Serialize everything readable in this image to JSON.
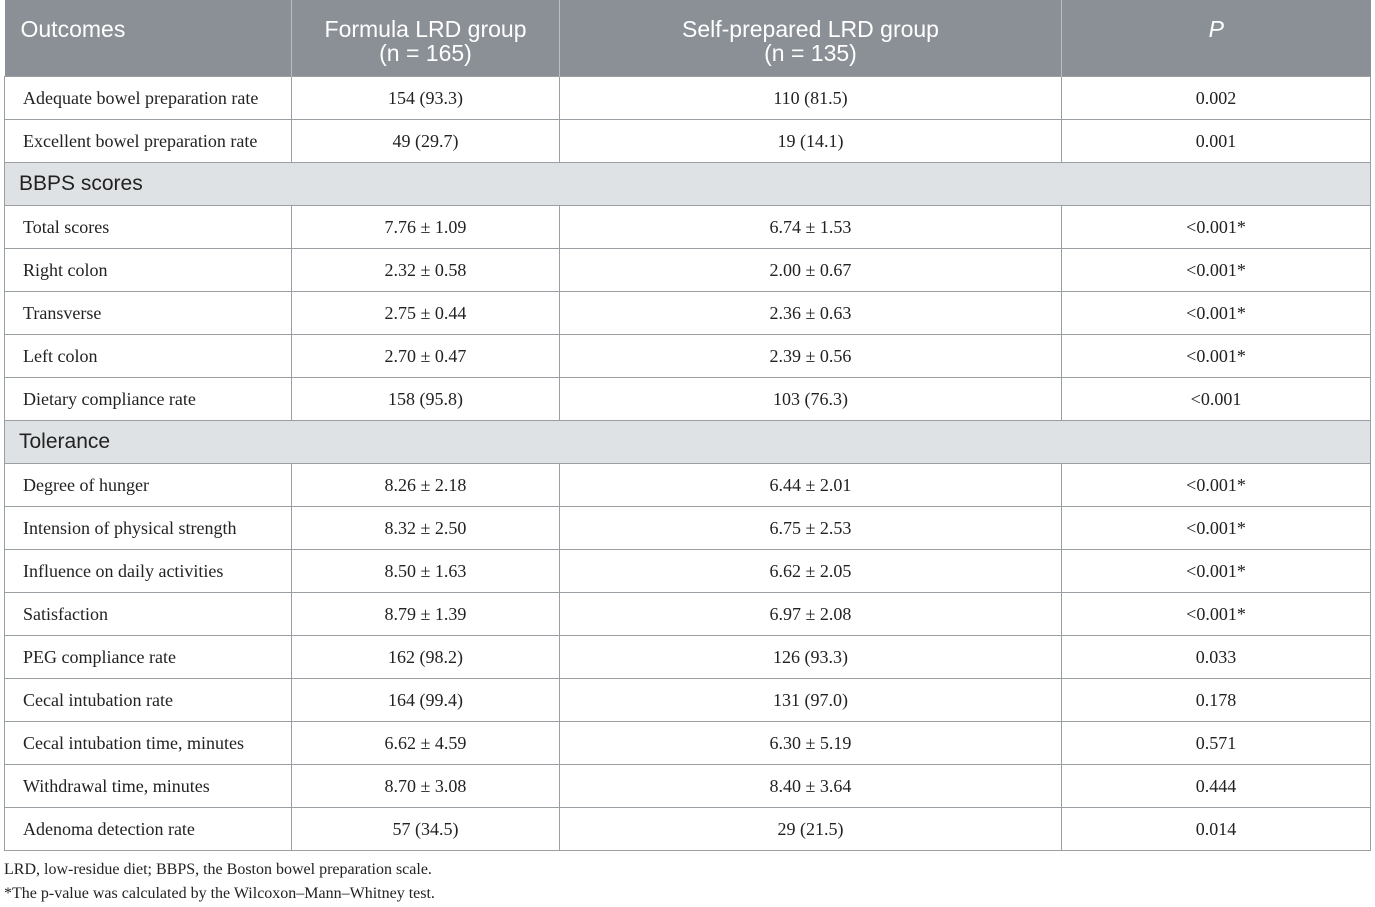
{
  "header": {
    "col1": "Outcomes",
    "col2_line1": "Formula LRD group",
    "col2_line2": "(n = 165)",
    "col3_line1": "Self-prepared LRD group",
    "col3_line2": "(n = 135)",
    "col4": "P"
  },
  "rows": [
    {
      "type": "data",
      "label": "Adequate bowel preparation rate",
      "formula": "154 (93.3)",
      "self": "110 (81.5)",
      "p": "0.002"
    },
    {
      "type": "data",
      "label": "Excellent bowel preparation rate",
      "formula": "49 (29.7)",
      "self": "19 (14.1)",
      "p": "0.001"
    },
    {
      "type": "section",
      "label": "BBPS scores"
    },
    {
      "type": "data",
      "label": "Total scores",
      "formula": "7.76 ± 1.09",
      "self": "6.74 ± 1.53",
      "p": "<0.001*"
    },
    {
      "type": "data",
      "label": "Right colon",
      "formula": "2.32 ± 0.58",
      "self": "2.00 ± 0.67",
      "p": "<0.001*"
    },
    {
      "type": "data",
      "label": "Transverse",
      "formula": "2.75 ± 0.44",
      "self": "2.36 ± 0.63",
      "p": "<0.001*"
    },
    {
      "type": "data",
      "label": "Left colon",
      "formula": "2.70 ± 0.47",
      "self": "2.39 ± 0.56",
      "p": "<0.001*"
    },
    {
      "type": "data",
      "label": "Dietary compliance rate",
      "formula": "158 (95.8)",
      "self": "103 (76.3)",
      "p": "<0.001"
    },
    {
      "type": "section",
      "label": "Tolerance"
    },
    {
      "type": "data",
      "label": "Degree of hunger",
      "formula": "8.26 ± 2.18",
      "self": "6.44 ± 2.01",
      "p": "<0.001*"
    },
    {
      "type": "data",
      "label": "Intension of physical strength",
      "formula": "8.32 ± 2.50",
      "self": "6.75 ± 2.53",
      "p": "<0.001*"
    },
    {
      "type": "data",
      "label": "Influence on daily activities",
      "formula": "8.50 ± 1.63",
      "self": "6.62 ± 2.05",
      "p": "<0.001*"
    },
    {
      "type": "data",
      "label": "Satisfaction",
      "formula": "8.79 ± 1.39",
      "self": "6.97 ± 2.08",
      "p": "<0.001*"
    },
    {
      "type": "data",
      "label": "PEG compliance rate",
      "formula": "162 (98.2)",
      "self": "126 (93.3)",
      "p": "0.033"
    },
    {
      "type": "data",
      "label": "Cecal intubation rate",
      "formula": "164 (99.4)",
      "self": "131 (97.0)",
      "p": "0.178"
    },
    {
      "type": "data",
      "label": "Cecal intubation time, minutes",
      "formula": "6.62 ± 4.59",
      "self": "6.30 ± 5.19",
      "p": "0.571"
    },
    {
      "type": "data",
      "label": "Withdrawal time, minutes",
      "formula": "8.70 ± 3.08",
      "self": "8.40 ± 3.64",
      "p": "0.444"
    },
    {
      "type": "data",
      "label": "Adenoma detection rate",
      "formula": "57 (34.5)",
      "self": "29 (21.5)",
      "p": "0.014"
    }
  ],
  "footnotes": {
    "abbrev": "LRD, low-residue diet; BBPS, the Boston bowel preparation scale.",
    "wilcoxon": "*The p-value was calculated by the Wilcoxon–Mann–Whitney test."
  }
}
